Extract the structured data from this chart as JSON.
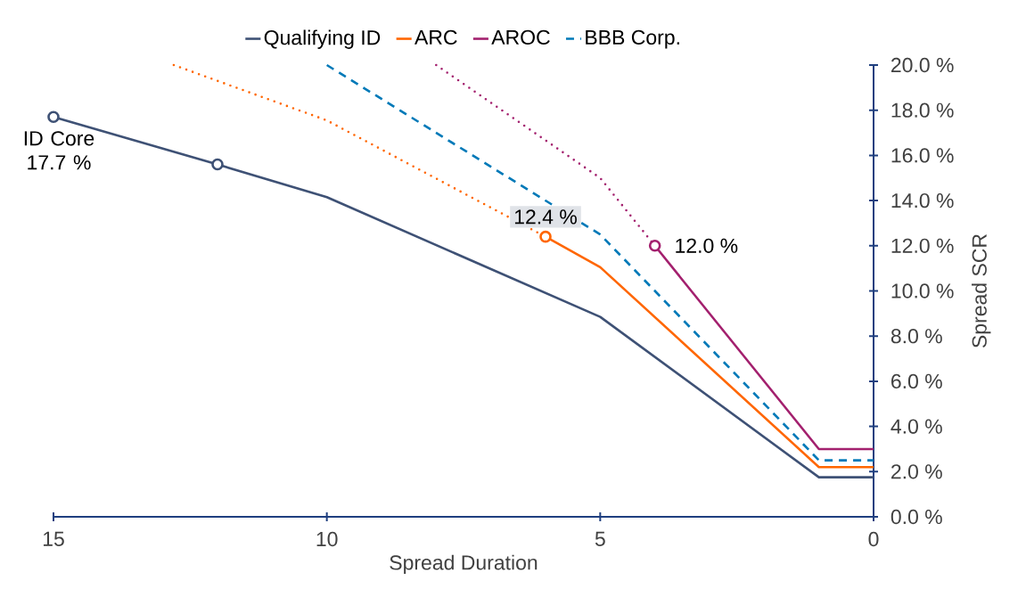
{
  "chart_data": {
    "type": "line",
    "xlabel": "Spread Duration",
    "ylabel": "Spread SCR",
    "xlim": [
      15,
      0
    ],
    "xticks": [
      15,
      10,
      5,
      0
    ],
    "ylim": [
      0,
      20
    ],
    "yticks": [
      {
        "value": 0,
        "label": "0.0 %"
      },
      {
        "value": 2,
        "label": "2.0 %"
      },
      {
        "value": 4,
        "label": "4.0 %"
      },
      {
        "value": 6,
        "label": "6.0 %"
      },
      {
        "value": 8,
        "label": "8.0 %"
      },
      {
        "value": 10,
        "label": "10.0 %"
      },
      {
        "value": 12,
        "label": "12.0 %"
      },
      {
        "value": 14,
        "label": "14.0 %"
      },
      {
        "value": 16,
        "label": "16.0 %"
      },
      {
        "value": 18,
        "label": "18.0 %"
      },
      {
        "value": 20,
        "label": "20.0 %"
      }
    ],
    "grid": false,
    "legend": "top",
    "series": [
      {
        "name": "Qualifying ID",
        "color": "#3e5175",
        "line_style": "solid",
        "x": [
          15,
          12,
          10,
          5,
          1,
          0
        ],
        "values": [
          17.7,
          15.6,
          14.15,
          8.85,
          1.75,
          1.75
        ]
      },
      {
        "name": "ARC",
        "color": "#ff6600",
        "line_style": "solid",
        "x": [
          6,
          5,
          1,
          0
        ],
        "values": [
          12.4,
          11.05,
          2.2,
          2.2
        ]
      },
      {
        "name": "AROC",
        "color": "#a3206e",
        "line_style": "solid",
        "x": [
          4,
          1,
          0
        ],
        "values": [
          12.0,
          3.0,
          3.0
        ]
      },
      {
        "name": "BBB Corp.",
        "color": "#0079b8",
        "line_style": "dashed",
        "x": [
          10,
          5,
          1,
          0
        ],
        "values": [
          20,
          12.5,
          2.5,
          2.5
        ]
      },
      {
        "color": "#ff6600",
        "line_style": "dotted",
        "x": [
          12.8,
          10,
          6
        ],
        "values": [
          20,
          17.55,
          12.4
        ]
      },
      {
        "color": "#a3206e",
        "line_style": "dotted",
        "x": [
          8,
          5,
          4
        ],
        "values": [
          20,
          15.0,
          12.0
        ]
      },
      {
        "type": "scatter",
        "marker": "circle",
        "color": "#3e5175",
        "x": [
          15,
          12
        ],
        "values": [
          17.7,
          15.6
        ]
      },
      {
        "type": "scatter",
        "marker": "circle",
        "color": "#ff6600",
        "x": [
          6
        ],
        "values": [
          12.4
        ]
      },
      {
        "type": "scatter",
        "marker": "circle",
        "color": "#a3206e",
        "x": [
          4
        ],
        "values": [
          12.0
        ]
      }
    ],
    "annotations": [
      {
        "text": "ID Core 17.7 %",
        "x": 15,
        "y": 17.7
      },
      {
        "text": "12.4 %",
        "x": 6,
        "y": 12.4
      },
      {
        "text": "12.0 %",
        "x": 4,
        "y": 12.0
      }
    ]
  }
}
